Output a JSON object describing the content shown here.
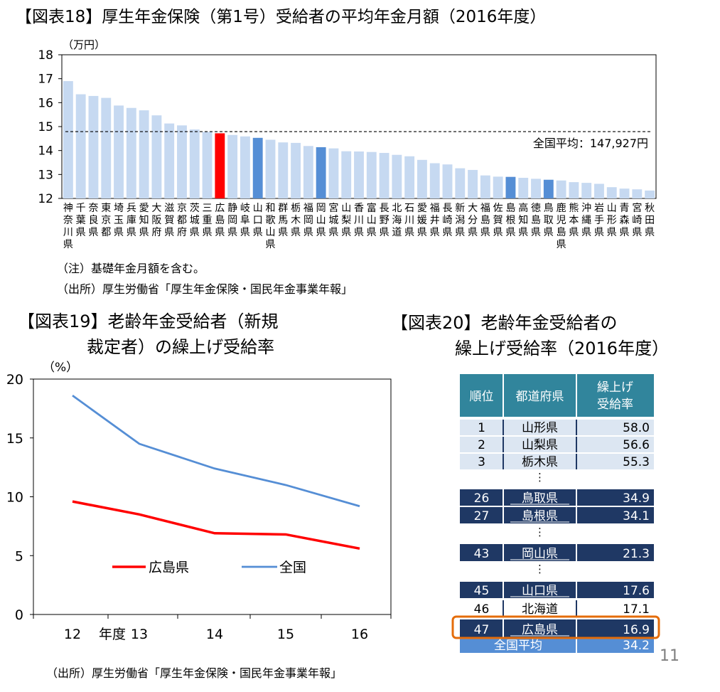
{
  "fig18": {
    "title": "【図表18】厚生年金保険（第1号）受給者の平均年金月額（2016年度）",
    "unit": "（万円）",
    "average_label": "全国平均：147,927円",
    "note": "（注）基礎年金月額を含む。",
    "source": "（出所）厚生労働省「厚生年金保険・国民年金事業年報」"
  },
  "fig19": {
    "title_line1": "【図表19】老齢年金受給者（新規",
    "title_line2": "裁定者）の繰上げ受給率",
    "unit": "（%）",
    "year_label": "年度",
    "source": "（出所）厚生労働省「厚生年金保険・国民年金事業年報」"
  },
  "fig20": {
    "title_line1": "【図表20】老齢年金受給者の",
    "title_line2": "繰上げ受給率（2016年度）",
    "headers": [
      "順位",
      "都道府県",
      "繰上げ\n受給率"
    ],
    "rows": [
      {
        "rank": "1",
        "pref": "山形県",
        "rate": "58.0",
        "style": "light"
      },
      {
        "rank": "2",
        "pref": "山梨県",
        "rate": "56.6",
        "style": "light"
      },
      {
        "rank": "3",
        "pref": "栃木県",
        "rate": "55.3",
        "style": "light"
      },
      {
        "rank": "",
        "pref": "⋮",
        "rate": "",
        "style": "gap"
      },
      {
        "rank": "26",
        "pref": "鳥取県",
        "rate": "34.9",
        "style": "dark"
      },
      {
        "rank": "27",
        "pref": "島根県",
        "rate": "34.1",
        "style": "dark"
      },
      {
        "rank": "",
        "pref": "⋮",
        "rate": "",
        "style": "gap"
      },
      {
        "rank": "43",
        "pref": "岡山県",
        "rate": "21.3",
        "style": "dark"
      },
      {
        "rank": "",
        "pref": "⋮",
        "rate": "",
        "style": "gap"
      },
      {
        "rank": "45",
        "pref": "山口県",
        "rate": "17.6",
        "style": "dark"
      },
      {
        "rank": "46",
        "pref": "北海道",
        "rate": "17.1",
        "style": "light"
      },
      {
        "rank": "47",
        "pref": "広島県",
        "rate": "16.9",
        "style": "dark"
      },
      {
        "rank": "全国平均",
        "pref": "",
        "rate": "34.2",
        "style": "national"
      }
    ]
  },
  "page_number": "11",
  "colors": {
    "bar_default": "#c6d9f1",
    "bar_hiroshima": "#ff0000",
    "bar_chugoku": "#558ed5",
    "line_hiroshima": "#ff0000",
    "line_national": "#558ed5",
    "table_header": "#31859c",
    "table_dark": "#1f3864",
    "table_light": "#dce6f2",
    "table_national": "#558ed5",
    "highlight": "#e46c0a"
  },
  "chart_data": [
    {
      "type": "bar",
      "title": "【図表18】厚生年金保険（第1号）受給者の平均年金月額（2016年度）",
      "ylabel": "（万円）",
      "ylim": [
        12,
        18
      ],
      "yticks": [
        12,
        13,
        14,
        15,
        16,
        17,
        18
      ],
      "reference_line": {
        "value": 14.79,
        "label": "全国平均：147,927円"
      },
      "categories": [
        "神奈川県",
        "千葉県",
        "奈良県",
        "東京都",
        "埼玉県",
        "兵庫県",
        "愛知県",
        "大阪府",
        "滋賀県",
        "京都府",
        "茨城県",
        "三重県",
        "広島県",
        "静岡県",
        "岐阜県",
        "山口県",
        "和歌山県",
        "群馬県",
        "栃木県",
        "福岡県",
        "岡山県",
        "宮城県",
        "山梨県",
        "香川県",
        "富山県",
        "長野県",
        "北海道",
        "石川県",
        "愛媛県",
        "福井県",
        "長崎県",
        "新潟県",
        "大分県",
        "福島県",
        "佐賀県",
        "島根県",
        "高知県",
        "徳島県",
        "鳥取県",
        "鹿児島県",
        "熊本県",
        "沖縄県",
        "岩手県",
        "山形県",
        "青森県",
        "宮崎県",
        "秋田県"
      ],
      "category_labels": [
        "神奈川県",
        "千葉県",
        "奈良県",
        "東京都",
        "埼玉県",
        "兵庫県",
        "愛知県",
        "大阪府",
        "滋賀県",
        "京都府",
        "茨城県",
        "三重県",
        "広島県",
        "静岡県",
        "岐阜県",
        "山口県",
        "和歌山県",
        "群馬県",
        "栃木県",
        "福岡県",
        "岡山県",
        "宮城県",
        "山梨県",
        "香川県",
        "富山県",
        "長野県",
        "北海道",
        "石川県",
        "愛媛県",
        "福井県",
        "長崎県",
        "新潟県",
        "大分県",
        "福島県",
        "佐賀県",
        "島根県",
        "高知県",
        "徳島県",
        "鳥取県",
        "鹿児島県",
        "熊本県",
        "沖縄県",
        "岩手県",
        "山形県",
        "青森県",
        "宮崎県",
        "秋田県"
      ],
      "values": [
        16.9,
        16.35,
        16.28,
        16.2,
        15.88,
        15.78,
        15.68,
        15.47,
        15.13,
        15.05,
        14.88,
        14.78,
        14.72,
        14.65,
        14.59,
        14.53,
        14.45,
        14.34,
        14.32,
        14.19,
        14.14,
        14.09,
        13.97,
        13.96,
        13.94,
        13.9,
        13.82,
        13.76,
        13.61,
        13.47,
        13.42,
        13.26,
        13.19,
        12.96,
        12.91,
        12.9,
        12.86,
        12.82,
        12.78,
        12.75,
        12.68,
        12.65,
        12.61,
        12.47,
        12.41,
        12.38,
        12.33
      ],
      "highlight": {
        "広島県": "bar_hiroshima",
        "山口県": "bar_chugoku",
        "岡山県": "bar_chugoku",
        "島根県": "bar_chugoku",
        "鳥取県": "bar_chugoku"
      }
    },
    {
      "type": "line",
      "title": "【図表19】老齢年金受給者（新規裁定者）の繰上げ受給率",
      "ylabel": "（%）",
      "ylim": [
        0,
        20
      ],
      "yticks": [
        0,
        5,
        10,
        15,
        20
      ],
      "x": [
        12,
        13,
        14,
        15,
        16
      ],
      "series": [
        {
          "name": "広島県",
          "values": [
            9.6,
            8.5,
            6.9,
            6.8,
            5.6
          ],
          "color": "line_hiroshima"
        },
        {
          "name": "全国",
          "values": [
            18.6,
            14.5,
            12.4,
            11.0,
            9.2
          ],
          "color": "line_national"
        }
      ],
      "legend": "center"
    }
  ]
}
